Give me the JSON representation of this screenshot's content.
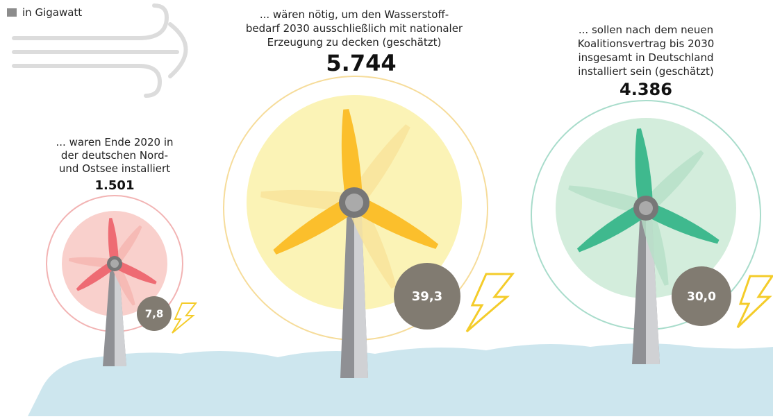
{
  "legend": "in Gigawatt",
  "items": [
    {
      "description": [
        "... waren Ende 2020 in",
        "der deutschen Nord-",
        "und Ostsee installiert"
      ],
      "count": "1.501",
      "gigawatt": "7,8"
    },
    {
      "description": [
        "... wären nötig, um den Wasserstoff-",
        "bedarf 2030 ausschließlich mit nationaler",
        "Erzeugung zu decken (geschätzt)"
      ],
      "count": "5.744",
      "gigawatt": "39,3"
    },
    {
      "description": [
        "... sollen nach dem neuen",
        "Koalitionsvertrag bis 2030",
        "insgesamt in Deutschland",
        "installiert sein (geschätzt)"
      ],
      "count": "4.386",
      "gigawatt": "30,0"
    }
  ]
}
